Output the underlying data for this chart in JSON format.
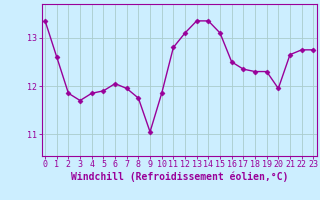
{
  "x": [
    0,
    1,
    2,
    3,
    4,
    5,
    6,
    7,
    8,
    9,
    10,
    11,
    12,
    13,
    14,
    15,
    16,
    17,
    18,
    19,
    20,
    21,
    22,
    23
  ],
  "y": [
    13.35,
    12.6,
    11.85,
    11.7,
    11.85,
    11.9,
    12.05,
    11.95,
    11.75,
    11.05,
    11.85,
    12.8,
    13.1,
    13.35,
    13.35,
    13.1,
    12.5,
    12.35,
    12.3,
    12.3,
    11.95,
    12.65,
    12.75,
    12.75
  ],
  "line_color": "#990099",
  "marker": "D",
  "markersize": 2.5,
  "linewidth": 1.0,
  "bg_color": "#cceeff",
  "grid_color": "#aacccc",
  "xlabel": "Windchill (Refroidissement éolien,°C)",
  "xlabel_fontsize": 7,
  "yticks": [
    11,
    12,
    13
  ],
  "xticks": [
    0,
    1,
    2,
    3,
    4,
    5,
    6,
    7,
    8,
    9,
    10,
    11,
    12,
    13,
    14,
    15,
    16,
    17,
    18,
    19,
    20,
    21,
    22,
    23
  ],
  "xlim": [
    -0.3,
    23.3
  ],
  "ylim": [
    10.55,
    13.7
  ],
  "tick_fontsize": 6,
  "tick_color": "#990099",
  "label_color": "#990099",
  "spine_color": "#990099"
}
